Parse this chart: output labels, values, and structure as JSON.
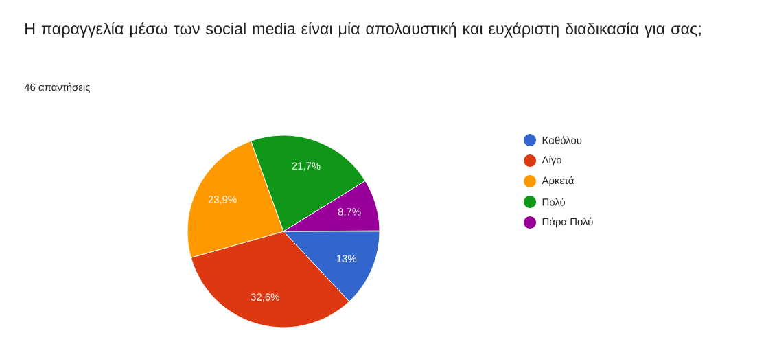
{
  "chart_data": {
    "type": "pie",
    "title": "Η παραγγελία μέσω των social media είναι μία απολαυστική και ευχάριστη διαδικασία για σας;",
    "subtitle": "46 απαντήσεις",
    "categories": [
      "Καθόλου",
      "Λίγο",
      "Αρκετά",
      "Πολύ",
      "Πάρα Πολύ"
    ],
    "values": [
      13,
      32.6,
      23.9,
      21.7,
      8.7
    ],
    "colors": [
      "#3366cc",
      "#dc3912",
      "#ff9900",
      "#109618",
      "#990099"
    ],
    "value_labels": [
      "13%",
      "32,6%",
      "23,9%",
      "21,7%",
      "8,7%"
    ],
    "legend": "right"
  }
}
